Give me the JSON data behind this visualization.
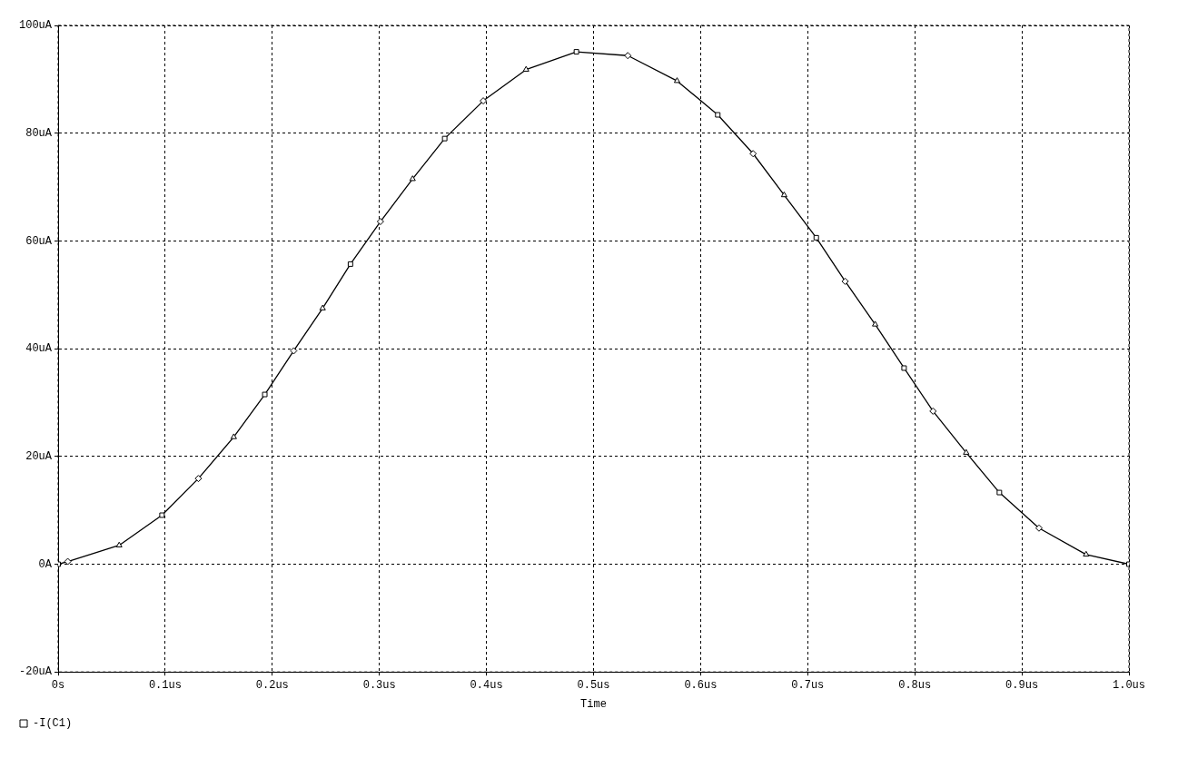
{
  "chart_data": {
    "type": "line",
    "xlabel": "Time",
    "x": [
      0,
      0.009,
      0.057,
      0.097,
      0.131,
      0.164,
      0.193,
      0.22,
      0.247,
      0.273,
      0.301,
      0.331,
      0.361,
      0.397,
      0.437,
      0.484,
      0.532,
      0.578,
      0.616,
      0.649,
      0.678,
      0.708,
      0.735,
      0.763,
      0.79,
      0.817,
      0.848,
      0.879,
      0.916,
      0.96,
      1.0
    ],
    "series": [
      {
        "name": "-I(C1)",
        "color": "#000000",
        "values": [
          0,
          0.5,
          3.5,
          9.1,
          15.9,
          23.6,
          31.5,
          39.6,
          47.5,
          55.7,
          63.6,
          71.5,
          79.0,
          86.0,
          91.8,
          95.1,
          94.4,
          89.7,
          83.4,
          76.2,
          68.5,
          60.6,
          52.5,
          44.5,
          36.4,
          28.4,
          20.7,
          13.3,
          6.7,
          1.8,
          0
        ]
      }
    ],
    "xlim": [
      0,
      1.0
    ],
    "xticks": [
      {
        "value": 0,
        "label": "0s"
      },
      {
        "value": 0.1,
        "label": "0.1us"
      },
      {
        "value": 0.2,
        "label": "0.2us"
      },
      {
        "value": 0.3,
        "label": "0.3us"
      },
      {
        "value": 0.4,
        "label": "0.4us"
      },
      {
        "value": 0.5,
        "label": "0.5us"
      },
      {
        "value": 0.6,
        "label": "0.6us"
      },
      {
        "value": 0.7,
        "label": "0.7us"
      },
      {
        "value": 0.8,
        "label": "0.8us"
      },
      {
        "value": 0.9,
        "label": "0.9us"
      },
      {
        "value": 1.0,
        "label": "1.0us"
      }
    ],
    "ylim": [
      -20,
      100
    ],
    "yticks": [
      {
        "value": -20,
        "label": "-20uA"
      },
      {
        "value": 0,
        "label": "0A"
      },
      {
        "value": 20,
        "label": "20uA"
      },
      {
        "value": 40,
        "label": "40uA"
      },
      {
        "value": 60,
        "label": "60uA"
      },
      {
        "value": 80,
        "label": "80uA"
      },
      {
        "value": 100,
        "label": "100uA"
      }
    ],
    "grid": true,
    "legend": "bottom left",
    "marker": "square",
    "line_style": "solid"
  }
}
